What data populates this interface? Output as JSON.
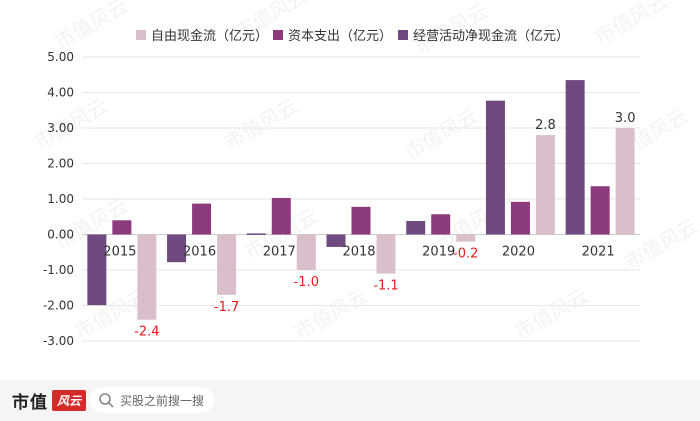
{
  "chart_data": {
    "type": "bar",
    "title": "",
    "categories": [
      "2015",
      "2016",
      "2017",
      "2018",
      "2019",
      "2020",
      "2021"
    ],
    "series": [
      {
        "name": "自由现金流（亿元）",
        "color": "#d8bfcb",
        "values": [
          -2.4,
          -1.7,
          -1.0,
          -1.1,
          -0.2,
          2.8,
          3.0
        ]
      },
      {
        "name": "资本支出（亿元）",
        "color": "#8b3a7c",
        "values": [
          0.4,
          0.87,
          1.03,
          0.78,
          0.57,
          0.92,
          1.36
        ]
      },
      {
        "name": "经营活动净现金流（亿元）",
        "color": "#6e4a80",
        "values": [
          -1.99,
          -0.78,
          0.03,
          -0.35,
          0.38,
          3.77,
          4.35
        ]
      }
    ],
    "data_labels": [
      "-2.4",
      "-1.7",
      "-1.0",
      "-1.1",
      "-0.2",
      "2.8",
      "3.0"
    ],
    "y_ticks": [
      "5.00",
      "4.00",
      "3.00",
      "2.00",
      "1.00",
      "0.00",
      "-1.00",
      "-2.00",
      "-3.00"
    ],
    "ylim": [
      -3,
      5
    ],
    "grid": true,
    "legend_position": "top-right"
  },
  "footer": {
    "brand": "市值",
    "brand_logo": "风云",
    "search_text": "买股之前搜一搜"
  },
  "watermark": "市值风云",
  "colors": {
    "negative_label": "#e8191c",
    "positive_label": "#333333",
    "grid": "#e6e6e6"
  }
}
